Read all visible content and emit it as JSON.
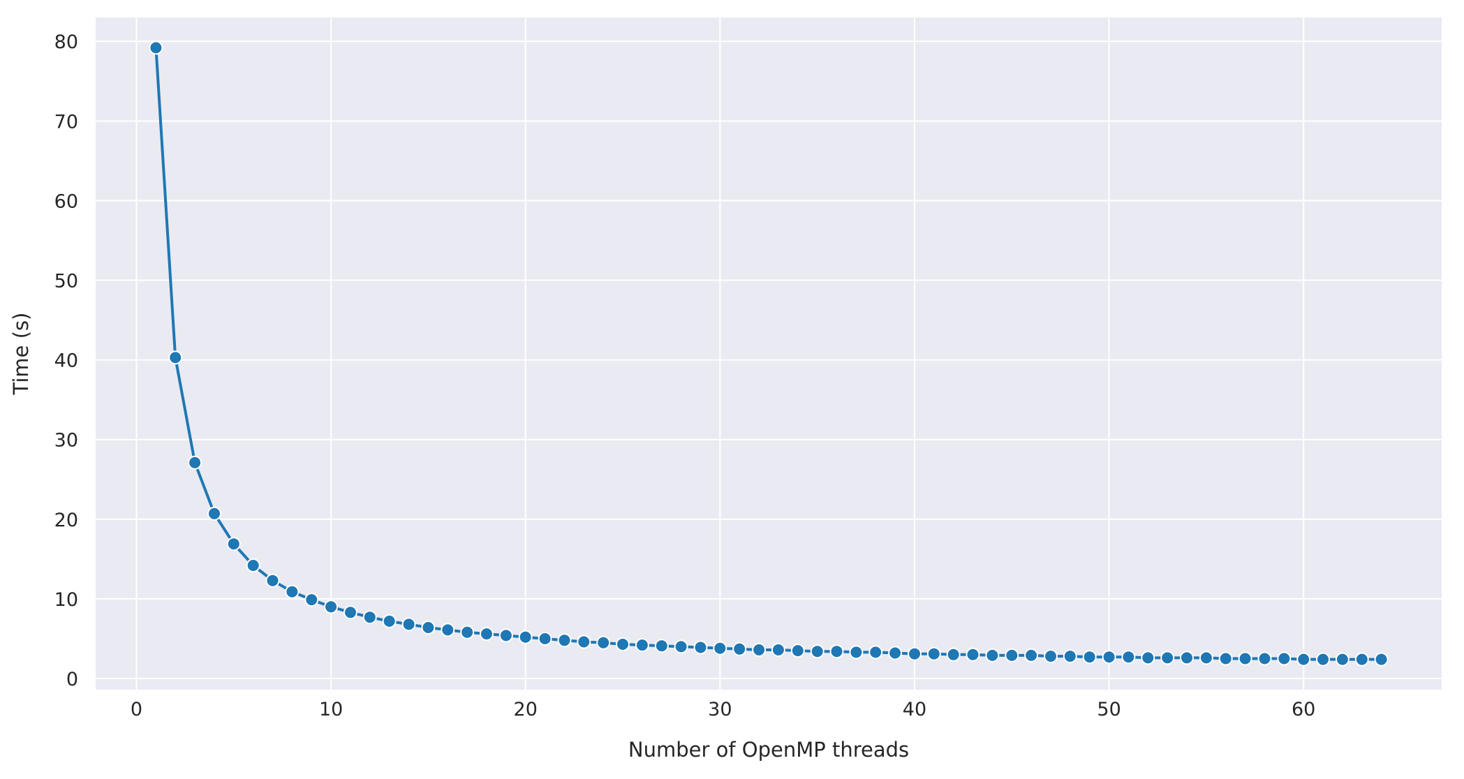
{
  "chart_data": {
    "type": "line",
    "title": "",
    "xlabel": "Number of OpenMP threads",
    "ylabel": "Time (s)",
    "xlim": [
      -2.1,
      67.1
    ],
    "ylim": [
      -1.4,
      83.0
    ],
    "xticks": [
      0,
      10,
      20,
      30,
      40,
      50,
      60
    ],
    "yticks": [
      0,
      10,
      20,
      30,
      40,
      50,
      60,
      70,
      80
    ],
    "grid": true,
    "legend": "none",
    "colors": {
      "background": "#eaeaf2",
      "grid": "#ffffff",
      "line": "#1f77b4",
      "marker_edge": "#ffffff",
      "text": "#262626"
    },
    "series": [
      {
        "x": [
          1,
          2,
          3,
          4,
          5,
          6,
          7,
          8,
          9,
          10,
          11,
          12,
          13,
          14,
          15,
          16,
          17,
          18,
          19,
          20,
          21,
          22,
          23,
          24,
          25,
          26,
          27,
          28,
          29,
          30,
          31,
          32,
          33,
          34,
          35,
          36,
          37,
          38,
          39,
          40,
          41,
          42,
          43,
          44,
          45,
          46,
          47,
          48,
          49,
          50,
          51,
          52,
          53,
          54,
          55,
          56,
          57,
          58,
          59,
          60,
          61,
          62,
          63,
          64
        ],
        "values": [
          79.2,
          40.3,
          27.1,
          20.7,
          16.9,
          14.2,
          12.3,
          10.9,
          9.9,
          9.0,
          8.3,
          7.7,
          7.2,
          6.8,
          6.4,
          6.1,
          5.8,
          5.6,
          5.4,
          5.2,
          5.0,
          4.8,
          4.6,
          4.5,
          4.3,
          4.2,
          4.1,
          4.0,
          3.9,
          3.8,
          3.7,
          3.6,
          3.6,
          3.5,
          3.4,
          3.4,
          3.3,
          3.3,
          3.2,
          3.1,
          3.1,
          3.0,
          3.0,
          2.9,
          2.9,
          2.9,
          2.8,
          2.8,
          2.7,
          2.7,
          2.7,
          2.6,
          2.6,
          2.6,
          2.6,
          2.5,
          2.5,
          2.5,
          2.5,
          2.4,
          2.4,
          2.4,
          2.4,
          2.4
        ]
      }
    ]
  }
}
